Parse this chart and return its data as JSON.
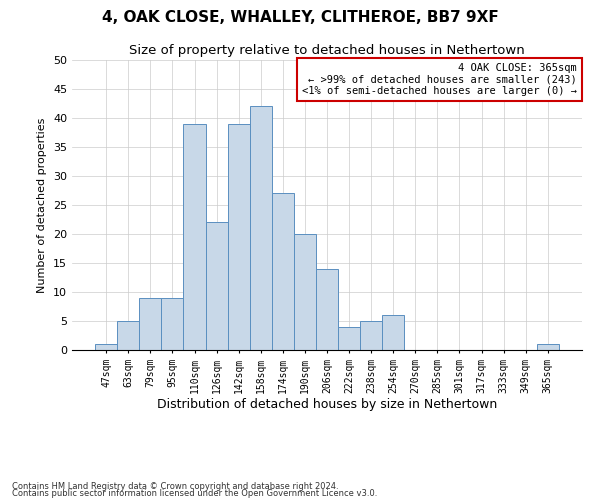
{
  "title": "4, OAK CLOSE, WHALLEY, CLITHEROE, BB7 9XF",
  "subtitle": "Size of property relative to detached houses in Nethertown",
  "xlabel": "Distribution of detached houses by size in Nethertown",
  "ylabel": "Number of detached properties",
  "footnote1": "Contains HM Land Registry data © Crown copyright and database right 2024.",
  "footnote2": "Contains public sector information licensed under the Open Government Licence v3.0.",
  "bar_labels": [
    "47sqm",
    "63sqm",
    "79sqm",
    "95sqm",
    "110sqm",
    "126sqm",
    "142sqm",
    "158sqm",
    "174sqm",
    "190sqm",
    "206sqm",
    "222sqm",
    "238sqm",
    "254sqm",
    "270sqm",
    "285sqm",
    "301sqm",
    "317sqm",
    "333sqm",
    "349sqm",
    "365sqm"
  ],
  "bar_values": [
    1,
    5,
    9,
    9,
    39,
    22,
    39,
    42,
    27,
    20,
    14,
    4,
    5,
    6,
    0,
    0,
    0,
    0,
    0,
    0,
    1
  ],
  "bar_color": "#c8d8e8",
  "bar_edgecolor": "#5a8fc0",
  "ylim": [
    0,
    50
  ],
  "yticks": [
    0,
    5,
    10,
    15,
    20,
    25,
    30,
    35,
    40,
    45,
    50
  ],
  "annotation_box_text": [
    "4 OAK CLOSE: 365sqm",
    "← >99% of detached houses are smaller (243)",
    "<1% of semi-detached houses are larger (0) →"
  ],
  "annotation_box_edgecolor": "#cc0000",
  "title_fontsize": 11,
  "subtitle_fontsize": 9.5,
  "xlabel_fontsize": 9,
  "ylabel_fontsize": 8,
  "tick_fontsize": 7,
  "annotation_fontsize": 7.5,
  "footnote_fontsize": 6,
  "background_color": "#ffffff",
  "grid_color": "#cccccc"
}
